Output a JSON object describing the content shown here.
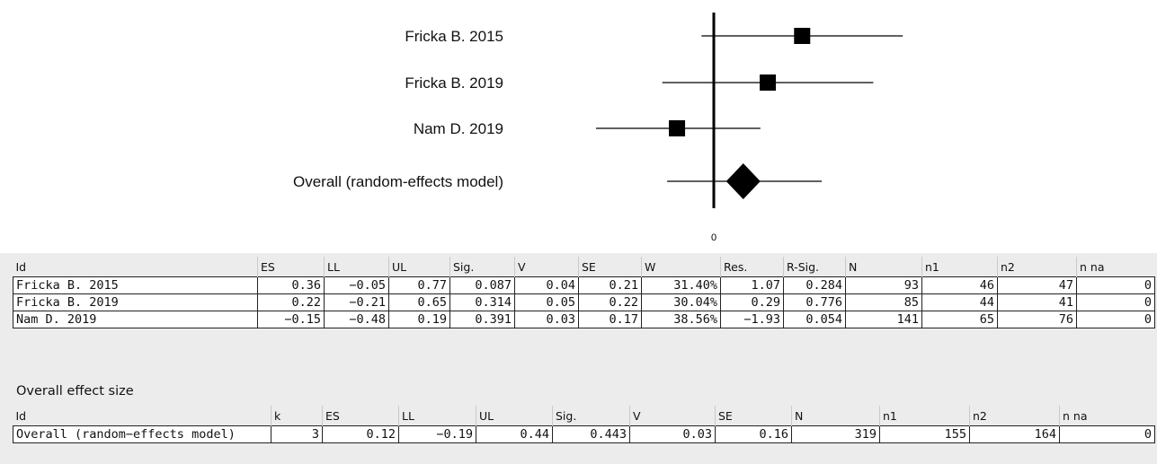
{
  "forest": {
    "axis_zero_label": "0",
    "rows": [
      {
        "label": "Fricka B. 2015",
        "es": 0.36,
        "ll": -0.05,
        "ul": 0.77,
        "marker": "square"
      },
      {
        "label": "Fricka B. 2019",
        "es": 0.22,
        "ll": -0.21,
        "ul": 0.65,
        "marker": "square"
      },
      {
        "label": "Nam D. 2019",
        "es": -0.15,
        "ll": -0.48,
        "ul": 0.19,
        "marker": "square"
      },
      {
        "label": "Overall (random-effects model)",
        "es": 0.12,
        "ll": -0.19,
        "ul": 0.44,
        "marker": "diamond"
      }
    ]
  },
  "studies_table": {
    "columns": [
      "Id",
      "ES",
      "LL",
      "UL",
      "Sig.",
      "V",
      "SE",
      "W",
      "Res.",
      "R-Sig.",
      "N",
      "n1",
      "n2",
      "n na"
    ],
    "rows": [
      [
        "Fricka B. 2015",
        "0.36",
        "−0.05",
        "0.77",
        "0.087",
        "0.04",
        "0.21",
        "31.40%",
        "1.07",
        "0.284",
        "93",
        "46",
        "47",
        "0"
      ],
      [
        "Fricka B. 2019",
        "0.22",
        "−0.21",
        "0.65",
        "0.314",
        "0.05",
        "0.22",
        "30.04%",
        "0.29",
        "0.776",
        "85",
        "44",
        "41",
        "0"
      ],
      [
        "Nam D. 2019",
        "−0.15",
        "−0.48",
        "0.19",
        "0.391",
        "0.03",
        "0.17",
        "38.56%",
        "−1.93",
        "0.054",
        "141",
        "65",
        "76",
        "0"
      ]
    ]
  },
  "overall_section": {
    "title": "Overall effect size",
    "columns": [
      "Id",
      "k",
      "ES",
      "LL",
      "UL",
      "Sig.",
      "V",
      "SE",
      "N",
      "n1",
      "n2",
      "n na"
    ],
    "rows": [
      [
        "Overall (random−effects model)",
        "3",
        "0.12",
        "−0.19",
        "0.44",
        "0.443",
        "0.03",
        "0.16",
        "319",
        "155",
        "164",
        "0"
      ]
    ]
  }
}
